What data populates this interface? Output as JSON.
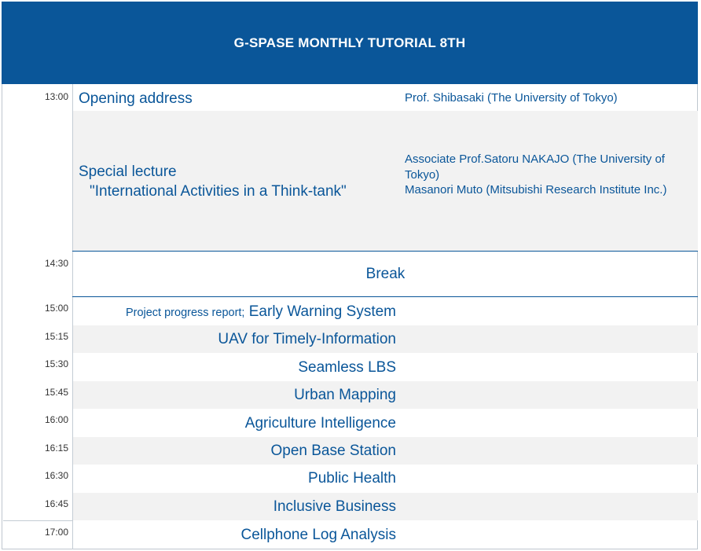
{
  "header": {
    "title": "G-SPASE MONTHLY TUTORIAL 8TH"
  },
  "times": [
    "13:00",
    "14:30",
    "15:00",
    "15:15",
    "15:30",
    "15:45",
    "16:00",
    "16:15",
    "16:30",
    "16:45",
    "17:00"
  ],
  "opening": {
    "title": "Opening address",
    "speaker": "Prof. Shibasaki (The University of Tokyo)"
  },
  "special": {
    "title": "Special lecture",
    "subtitle": "\"International Activities in a Think-tank\"",
    "speaker1": "Associate Prof.Satoru NAKAJO (The University of Tokyo)",
    "speaker2": "Masanori Muto (Mitsubishi Research Institute Inc.)"
  },
  "break": {
    "label": "Break"
  },
  "progress": {
    "prefix": "Project progress report;",
    "items": [
      "Early Warning System",
      "UAV for Timely-Information",
      "Seamless LBS",
      "Urban Mapping",
      "Agriculture Intelligence",
      "Open Base Station",
      "Public Health",
      "Inclusive Business",
      "Cellphone Log Analysis"
    ]
  }
}
